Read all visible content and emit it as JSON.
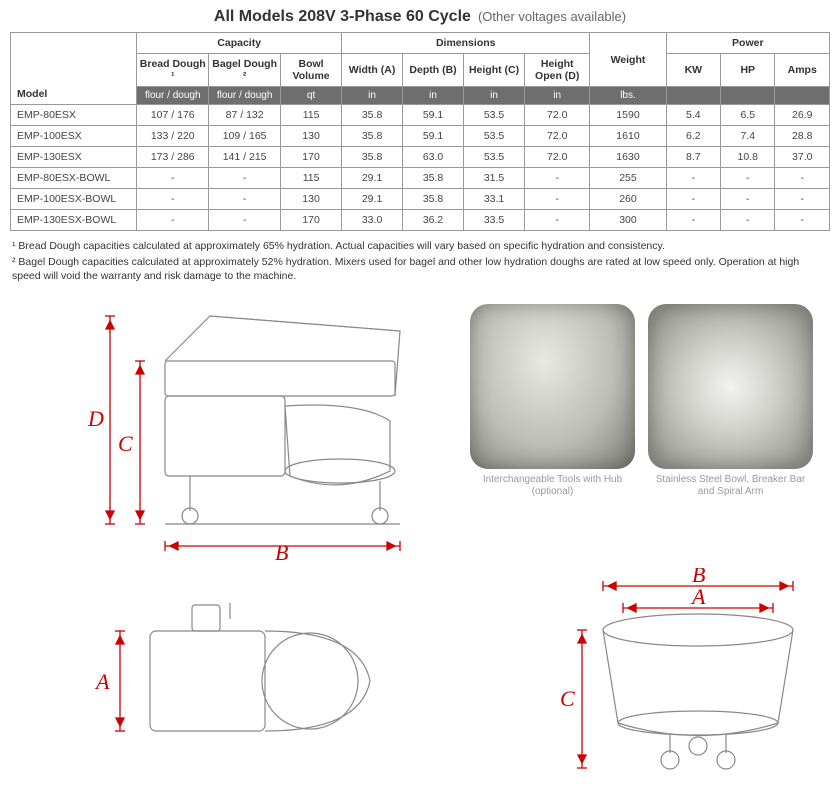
{
  "title": {
    "main": "All Models 208V  3-Phase 60 Cycle",
    "sub": "(Other voltages available)"
  },
  "table": {
    "headers": {
      "model": "Model",
      "capacity": "Capacity",
      "bread_dough": "Bread Dough ¹",
      "bagel_dough": "Bagel Dough ²",
      "bowl_volume": "Bowl Volume",
      "dimensions": "Dimensions",
      "width": "Width (A)",
      "depth": "Depth (B)",
      "height": "Height (C)",
      "height_open": "Height Open (D)",
      "weight": "Weight",
      "power": "Power",
      "kw": "KW",
      "hp": "HP",
      "amps": "Amps"
    },
    "units": {
      "flour_dough": "flour / dough",
      "qt": "qt",
      "in": "in",
      "lbs": "lbs."
    },
    "rows": [
      {
        "model": "EMP-80ESX",
        "bread": "107 / 176",
        "bagel": "87 / 132",
        "bowl": "115",
        "w": "35.8",
        "d": "59.1",
        "h": "53.5",
        "ho": "72.0",
        "wt": "1590",
        "kw": "5.4",
        "hp": "6.5",
        "amps": "26.9"
      },
      {
        "model": "EMP-100ESX",
        "bread": "133 / 220",
        "bagel": "109 / 165",
        "bowl": "130",
        "w": "35.8",
        "d": "59.1",
        "h": "53.5",
        "ho": "72.0",
        "wt": "1610",
        "kw": "6.2",
        "hp": "7.4",
        "amps": "28.8"
      },
      {
        "model": "EMP-130ESX",
        "bread": "173 / 286",
        "bagel": "141 / 215",
        "bowl": "170",
        "w": "35.8",
        "d": "63.0",
        "h": "53.5",
        "ho": "72.0",
        "wt": "1630",
        "kw": "8.7",
        "hp": "10.8",
        "amps": "37.0"
      },
      {
        "model": "EMP-80ESX-BOWL",
        "bread": "-",
        "bagel": "-",
        "bowl": "115",
        "w": "29.1",
        "d": "35.8",
        "h": "31.5",
        "ho": "-",
        "wt": "255",
        "kw": "-",
        "hp": "-",
        "amps": "-"
      },
      {
        "model": "EMP-100ESX-BOWL",
        "bread": "-",
        "bagel": "-",
        "bowl": "130",
        "w": "29.1",
        "d": "35.8",
        "h": "33.1",
        "ho": "-",
        "wt": "260",
        "kw": "-",
        "hp": "-",
        "amps": "-"
      },
      {
        "model": "EMP-130ESX-BOWL",
        "bread": "-",
        "bagel": "-",
        "bowl": "170",
        "w": "33.0",
        "d": "36.2",
        "h": "33.5",
        "ho": "-",
        "wt": "300",
        "kw": "-",
        "hp": "-",
        "amps": "-"
      }
    ]
  },
  "footnotes": {
    "fn1": "¹ Bread Dough capacities calculated at approximately 65% hydration. Actual capacities will vary based on specific hydration and consistency.",
    "fn2": "² Bagel Dough capacities calculated at approximately 52% hydration. Mixers used for bagel and other low hydration doughs are rated at low speed only. Operation at high speed will void the warranty and risk damage to the machine."
  },
  "captions": {
    "photo1_line1": "Interchangeable Tools with Hub",
    "photo1_line2": "(optional)",
    "photo2_line1": "Stainless Steel Bowl, Breaker Bar",
    "photo2_line2": "and Spiral Arm"
  },
  "dim_labels": {
    "A": "A",
    "B": "B",
    "C": "C",
    "D": "D"
  },
  "colors": {
    "dim_red": "#c00000",
    "line_gray": "#888888",
    "border": "#999999",
    "unit_row_bg": "#6e6e6e"
  }
}
